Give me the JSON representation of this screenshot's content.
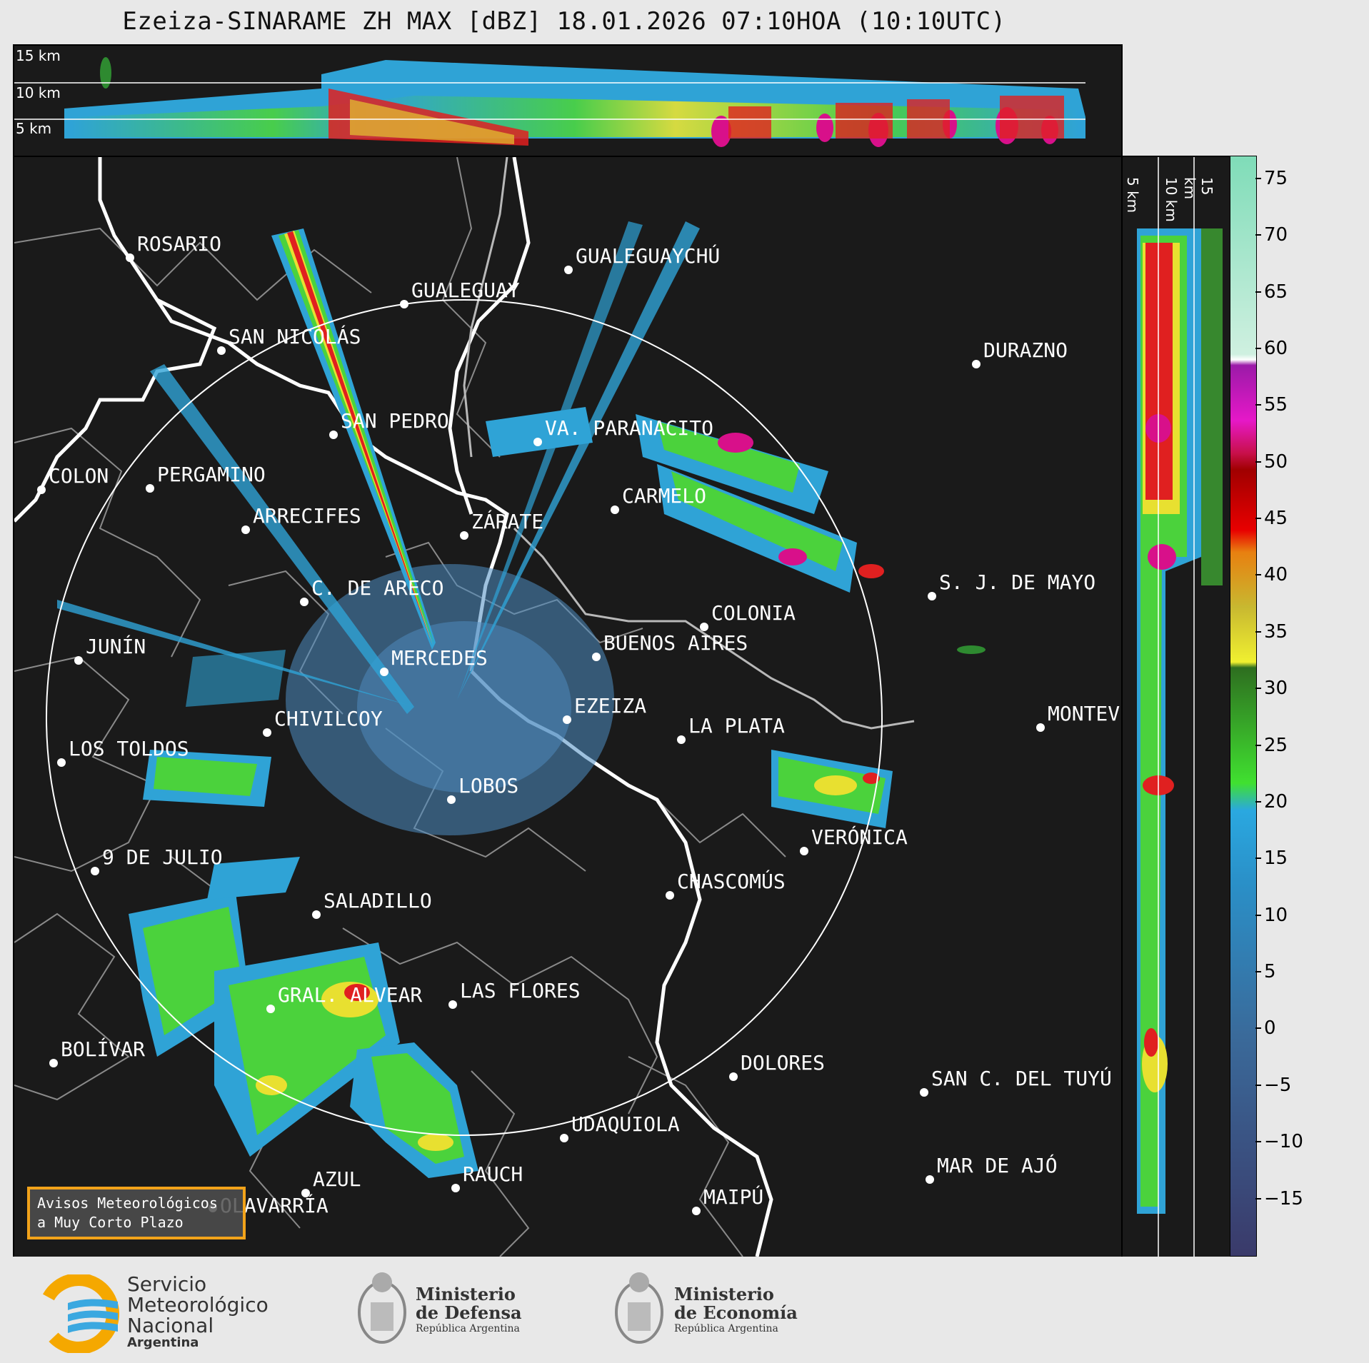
{
  "title": "Ezeiza-SINARAME ZH MAX [dBZ] 18.01.2026 07:10HOA (10:10UTC)",
  "top_panel": {
    "altitudes": [
      "15 km",
      "10 km",
      "5 km"
    ]
  },
  "side_panel": {
    "altitudes": [
      "5 km",
      "10 km",
      "15 km"
    ]
  },
  "colorbar": {
    "ticks": [
      "75",
      "70",
      "65",
      "60",
      "55",
      "50",
      "45",
      "40",
      "35",
      "30",
      "25",
      "20",
      "15",
      "10",
      "5",
      "0",
      "−5",
      "−10",
      "−15"
    ],
    "range_dbz": [
      -20,
      77
    ]
  },
  "cities": [
    {
      "name": "ROSARIO"
    },
    {
      "name": "GUALEGUAYCHÚ"
    },
    {
      "name": "GUALEGUAY"
    },
    {
      "name": "SAN NICOLÁS"
    },
    {
      "name": "DURAZNO"
    },
    {
      "name": "SAN PEDRO"
    },
    {
      "name": "VA. PARANACITO"
    },
    {
      "name": "COLON"
    },
    {
      "name": "PERGAMINO"
    },
    {
      "name": "CARMELO"
    },
    {
      "name": "ARRECIFES"
    },
    {
      "name": "ZÁRATE"
    },
    {
      "name": "S. J. DE MAYO"
    },
    {
      "name": "C. DE ARECO"
    },
    {
      "name": "COLONIA"
    },
    {
      "name": "JUNÍN"
    },
    {
      "name": "BUENOS AIRES"
    },
    {
      "name": "MERCEDES"
    },
    {
      "name": "EZEIZA"
    },
    {
      "name": "MONTEV"
    },
    {
      "name": "CHIVILCOY"
    },
    {
      "name": "LA PLATA"
    },
    {
      "name": "LOS TOLDOS"
    },
    {
      "name": "LOBOS"
    },
    {
      "name": "VERÓNICA"
    },
    {
      "name": "9 DE JULIO"
    },
    {
      "name": "CHASCOMÚS"
    },
    {
      "name": "SALADILLO"
    },
    {
      "name": "GRAL. ALVEAR"
    },
    {
      "name": "LAS FLORES"
    },
    {
      "name": "BOLÍVAR"
    },
    {
      "name": "DOLORES"
    },
    {
      "name": "SAN C. DEL TUYÚ"
    },
    {
      "name": "UDAQUIOLA"
    },
    {
      "name": "MAR DE AJÓ"
    },
    {
      "name": "AZUL"
    },
    {
      "name": "RAUCH"
    },
    {
      "name": "OLAVARRÍA"
    },
    {
      "name": "MAIPÚ"
    }
  ],
  "avisos": {
    "line1": "Avisos Meteorológicos",
    "line2": "a Muy Corto Plazo"
  },
  "footer": {
    "smn": {
      "line1": "Servicio",
      "line2": "Meteorológico",
      "line3": "Nacional",
      "line4": "Argentina"
    },
    "defensa": {
      "line1": "Ministerio",
      "line2": "de Defensa",
      "line3": "República Argentina"
    },
    "economia": {
      "line1": "Ministerio",
      "line2": "de Economía",
      "line3": "República Argentina"
    }
  },
  "colors": {
    "ring": "#ffffff",
    "coast": "#ffffff",
    "borders": "#8a8a8a",
    "logo_yellow": "#f5a800",
    "logo_blue": "#3aa8e0",
    "avisos_border": "#f2a31a"
  }
}
